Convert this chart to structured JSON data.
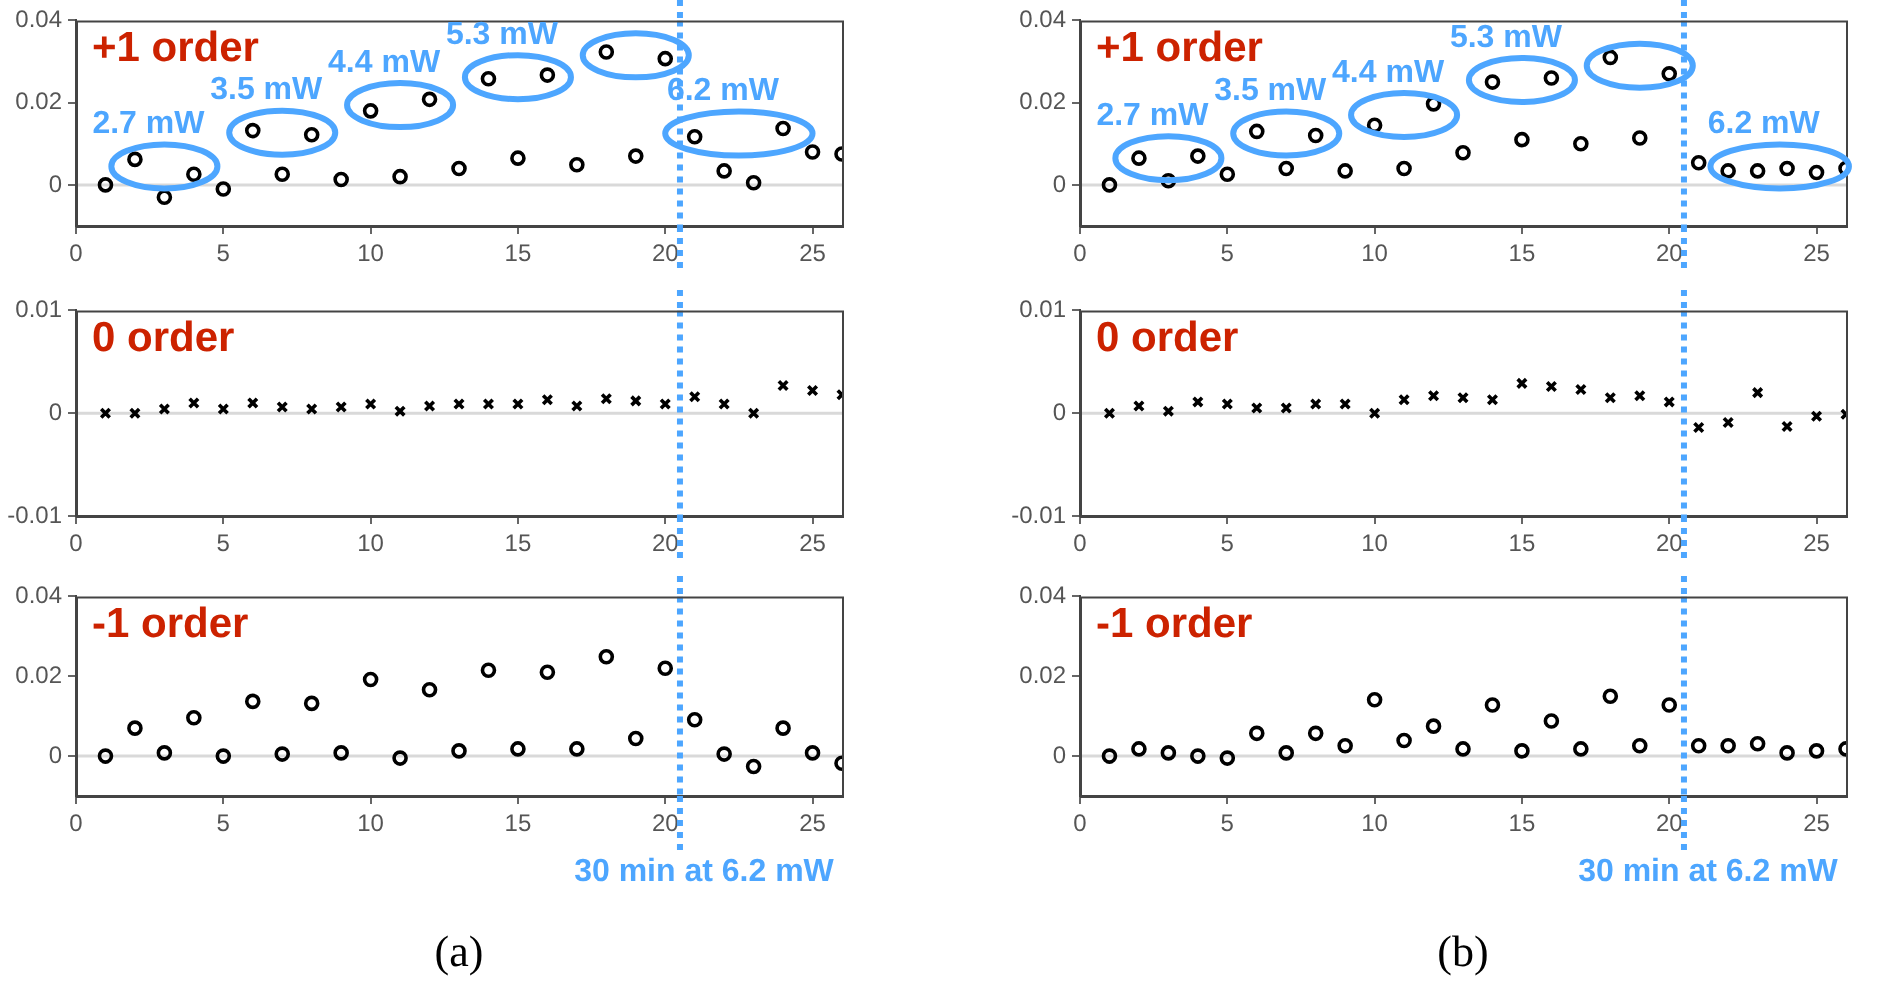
{
  "chart_data": [
    {
      "type": "scatter",
      "title": "+1 order",
      "x": [
        1,
        2,
        3,
        4,
        5,
        6,
        7,
        8,
        9,
        10,
        11,
        12,
        13,
        14,
        15,
        16,
        17,
        18,
        19,
        20,
        21,
        22,
        23,
        24,
        25,
        26
      ],
      "values": [
        0,
        0.0062,
        -0.003,
        0.0026,
        -0.001,
        0.0132,
        0.0026,
        0.0122,
        0.0013,
        0.018,
        0.002,
        0.0208,
        0.004,
        0.0258,
        0.0065,
        0.0267,
        0.0049,
        0.0323,
        0.007,
        0.0307,
        0.0117,
        0.0034,
        0.0005,
        0.0137,
        0.008,
        0.0075
      ],
      "color": "#000000",
      "marker": "circle",
      "xlim": [
        0,
        26
      ],
      "xticks": [
        0,
        5,
        10,
        15,
        20,
        25
      ],
      "ylim": [
        -0.01,
        0.04
      ],
      "yticks": [
        0,
        0.02,
        0.04
      ],
      "grid": false,
      "legend": false,
      "ref_lines": [
        {
          "axis": "y",
          "value": 0,
          "color": "#d9d9d9",
          "line_style": "solid"
        },
        {
          "axis": "x",
          "value": 20.5,
          "color": "#4da6ff",
          "line_style": "dotted"
        }
      ],
      "annotations": [
        "2.7 mW",
        "3.5 mW",
        "4.4 mW",
        "5.3 mW",
        "6.2 mW"
      ]
    },
    {
      "type": "scatter",
      "title": "0 order",
      "x": [
        1,
        2,
        3,
        4,
        5,
        6,
        7,
        8,
        9,
        10,
        11,
        12,
        13,
        14,
        15,
        16,
        17,
        18,
        19,
        20,
        21,
        22,
        23,
        24,
        25,
        26
      ],
      "values": [
        0,
        0,
        0.0004,
        0.001,
        0.0004,
        0.001,
        0.0006,
        0.0004,
        0.0006,
        0.0009,
        0.0002,
        0.0007,
        0.0009,
        0.0009,
        0.0009,
        0.0013,
        0.0007,
        0.0014,
        0.0012,
        0.0009,
        0.0016,
        0.0009,
        0,
        0.0027,
        0.0022,
        0.0018
      ],
      "color": "#000000",
      "marker": "cross",
      "xlim": [
        0,
        26
      ],
      "xticks": [
        0,
        5,
        10,
        15,
        20,
        25
      ],
      "ylim": [
        -0.01,
        0.01
      ],
      "yticks": [
        -0.01,
        0,
        0.01
      ],
      "grid": false,
      "legend": false,
      "ref_lines": [
        {
          "axis": "y",
          "value": 0,
          "color": "#d9d9d9",
          "line_style": "solid"
        },
        {
          "axis": "x",
          "value": 20.5,
          "color": "#4da6ff",
          "line_style": "dotted"
        }
      ]
    },
    {
      "type": "scatter",
      "title": "-1 order",
      "x": [
        1,
        2,
        3,
        4,
        5,
        6,
        7,
        8,
        9,
        10,
        11,
        12,
        13,
        14,
        15,
        16,
        17,
        18,
        19,
        20,
        21,
        22,
        23,
        24,
        25,
        26
      ],
      "values": [
        0,
        0.007,
        0.0008,
        0.0096,
        0,
        0.0137,
        0.0005,
        0.0132,
        0.0008,
        0.0192,
        -0.0005,
        0.0166,
        0.0013,
        0.0215,
        0.0018,
        0.021,
        0.0018,
        0.0249,
        0.0044,
        0.022,
        0.0091,
        0.0005,
        -0.0026,
        0.007,
        0.0008,
        -0.0018
      ],
      "color": "#000000",
      "marker": "circle",
      "xlim": [
        0,
        26
      ],
      "xticks": [
        0,
        5,
        10,
        15,
        20,
        25
      ],
      "ylim": [
        -0.01,
        0.04
      ],
      "yticks": [
        0,
        0.02,
        0.04
      ],
      "grid": false,
      "legend": false,
      "ref_lines": [
        {
          "axis": "y",
          "value": 0,
          "color": "#d9d9d9",
          "line_style": "solid"
        },
        {
          "axis": "x",
          "value": 20.5,
          "color": "#4da6ff",
          "line_style": "dotted",
          "label": "30 min at 6.2 mW"
        }
      ],
      "annotations": [
        "(a)"
      ]
    },
    {
      "type": "scatter",
      "title": "+1 order",
      "x": [
        1,
        2,
        3,
        4,
        5,
        6,
        7,
        8,
        9,
        10,
        11,
        12,
        13,
        14,
        15,
        16,
        17,
        18,
        19,
        20,
        21,
        22,
        23,
        24,
        25,
        26
      ],
      "values": [
        0,
        0.0065,
        0.001,
        0.007,
        0.0026,
        0.013,
        0.004,
        0.012,
        0.0034,
        0.0145,
        0.004,
        0.0197,
        0.0078,
        0.025,
        0.011,
        0.026,
        0.01,
        0.031,
        0.0114,
        0.027,
        0.0054,
        0.0034,
        0.0034,
        0.004,
        0.003,
        0.004
      ],
      "color": "#000000",
      "marker": "circle",
      "xlim": [
        0,
        26
      ],
      "xticks": [
        0,
        5,
        10,
        15,
        20,
        25
      ],
      "ylim": [
        -0.01,
        0.04
      ],
      "yticks": [
        0,
        0.02,
        0.04
      ],
      "grid": false,
      "legend": false,
      "ref_lines": [
        {
          "axis": "y",
          "value": 0,
          "color": "#d9d9d9",
          "line_style": "solid"
        },
        {
          "axis": "x",
          "value": 20.5,
          "color": "#4da6ff",
          "line_style": "dotted"
        }
      ],
      "annotations": [
        "2.7 mW",
        "3.5 mW",
        "4.4 mW",
        "5.3 mW",
        "6.2 mW"
      ]
    },
    {
      "type": "scatter",
      "title": "0 order",
      "x": [
        1,
        2,
        3,
        4,
        5,
        6,
        7,
        8,
        9,
        10,
        11,
        12,
        13,
        14,
        15,
        16,
        17,
        18,
        19,
        20,
        21,
        22,
        23,
        24,
        25,
        26
      ],
      "values": [
        0,
        0.0007,
        0.0002,
        0.0011,
        0.0009,
        0.0005,
        0.0005,
        0.0009,
        0.0009,
        0,
        0.0013,
        0.0017,
        0.0015,
        0.0013,
        0.0029,
        0.0026,
        0.0023,
        0.0015,
        0.0017,
        0.0011,
        -0.0014,
        -0.0009,
        0.002,
        -0.0013,
        -0.0003,
        -0.0001
      ],
      "color": "#000000",
      "marker": "cross",
      "xlim": [
        0,
        26
      ],
      "xticks": [
        0,
        5,
        10,
        15,
        20,
        25
      ],
      "ylim": [
        -0.01,
        0.01
      ],
      "yticks": [
        -0.01,
        0,
        0.01
      ],
      "grid": false,
      "legend": false,
      "ref_lines": [
        {
          "axis": "y",
          "value": 0,
          "color": "#d9d9d9",
          "line_style": "solid"
        },
        {
          "axis": "x",
          "value": 20.5,
          "color": "#4da6ff",
          "line_style": "dotted"
        }
      ]
    },
    {
      "type": "scatter",
      "title": "-1 order",
      "x": [
        1,
        2,
        3,
        4,
        5,
        6,
        7,
        8,
        9,
        10,
        11,
        12,
        13,
        14,
        15,
        16,
        17,
        18,
        19,
        20,
        21,
        22,
        23,
        24,
        25,
        26
      ],
      "values": [
        0,
        0.0018,
        0.0008,
        0,
        -0.0005,
        0.0057,
        0.0008,
        0.0057,
        0.0026,
        0.0141,
        0.0039,
        0.0075,
        0.0018,
        0.0128,
        0.0013,
        0.0088,
        0.0018,
        0.015,
        0.0026,
        0.0128,
        0.0026,
        0.0026,
        0.0031,
        0.0008,
        0.0013,
        0.0018
      ],
      "color": "#000000",
      "marker": "circle",
      "xlim": [
        0,
        26
      ],
      "xticks": [
        0,
        5,
        10,
        15,
        20,
        25
      ],
      "ylim": [
        -0.01,
        0.04
      ],
      "yticks": [
        0,
        0.02,
        0.04
      ],
      "grid": false,
      "legend": false,
      "ref_lines": [
        {
          "axis": "y",
          "value": 0,
          "color": "#d9d9d9",
          "line_style": "solid"
        },
        {
          "axis": "x",
          "value": 20.5,
          "color": "#4da6ff",
          "line_style": "dotted",
          "label": "30 min at 6.2 mW"
        }
      ],
      "annotations": [
        "(b)"
      ]
    }
  ]
}
